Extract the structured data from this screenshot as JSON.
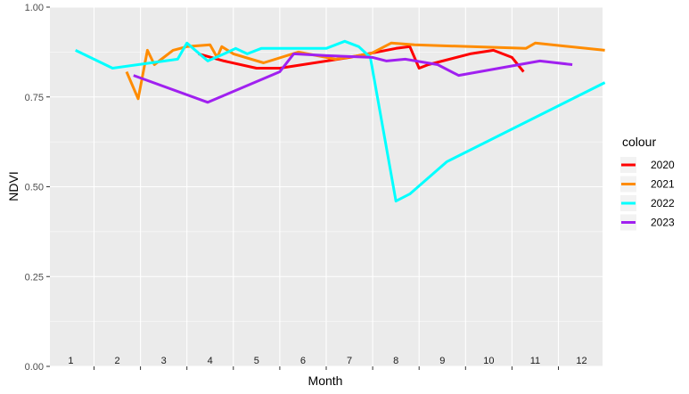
{
  "chart_data": {
    "type": "line",
    "xlabel": "Month",
    "ylabel": "NDVI",
    "xlim": [
      0.55,
      12.45
    ],
    "ylim": [
      0,
      1
    ],
    "y_ticks": [
      "0.00",
      "0.25",
      "0.50",
      "0.75",
      "1.00"
    ],
    "y_tick_values": [
      0,
      0.25,
      0.5,
      0.75,
      1
    ],
    "month_labels": [
      "1",
      "2",
      "3",
      "4",
      "5",
      "6",
      "7",
      "8",
      "9",
      "10",
      "11",
      "12"
    ],
    "legend_title": "colour",
    "legend_position": "right",
    "grid": true,
    "panel_background": "#ebebeb",
    "series": [
      {
        "name": "2020",
        "color": "#ff0000",
        "points": [
          [
            3.75,
            0.87
          ],
          [
            4.3,
            0.85
          ],
          [
            5.0,
            0.83
          ],
          [
            5.5,
            0.83
          ],
          [
            7.0,
            0.86
          ],
          [
            8.0,
            0.885
          ],
          [
            8.3,
            0.89
          ],
          [
            8.5,
            0.83
          ],
          [
            8.7,
            0.84
          ],
          [
            9.6,
            0.87
          ],
          [
            10.1,
            0.88
          ],
          [
            10.5,
            0.86
          ],
          [
            10.75,
            0.82
          ]
        ]
      },
      {
        "name": "2021",
        "color": "#ff8c00",
        "points": [
          [
            2.2,
            0.82
          ],
          [
            2.45,
            0.745
          ],
          [
            2.65,
            0.88
          ],
          [
            2.8,
            0.84
          ],
          [
            3.2,
            0.88
          ],
          [
            3.5,
            0.89
          ],
          [
            4.0,
            0.895
          ],
          [
            4.15,
            0.86
          ],
          [
            4.25,
            0.89
          ],
          [
            4.5,
            0.87
          ],
          [
            5.15,
            0.845
          ],
          [
            5.9,
            0.875
          ],
          [
            6.7,
            0.855
          ],
          [
            7.45,
            0.87
          ],
          [
            7.9,
            0.9
          ],
          [
            8.4,
            0.895
          ],
          [
            10.8,
            0.885
          ],
          [
            11.0,
            0.9
          ],
          [
            12.5,
            0.88
          ]
        ]
      },
      {
        "name": "2022",
        "color": "#00ffff",
        "points": [
          [
            1.1,
            0.88
          ],
          [
            1.9,
            0.83
          ],
          [
            3.3,
            0.855
          ],
          [
            3.5,
            0.9
          ],
          [
            3.95,
            0.85
          ],
          [
            4.3,
            0.87
          ],
          [
            4.55,
            0.885
          ],
          [
            4.8,
            0.87
          ],
          [
            5.1,
            0.885
          ],
          [
            5.4,
            0.885
          ],
          [
            6.5,
            0.885
          ],
          [
            6.9,
            0.905
          ],
          [
            7.2,
            0.89
          ],
          [
            7.45,
            0.86
          ],
          [
            8.0,
            0.46
          ],
          [
            8.3,
            0.48
          ],
          [
            9.1,
            0.57
          ],
          [
            12.5,
            0.79
          ]
        ]
      },
      {
        "name": "2023",
        "color": "#a020f0",
        "points": [
          [
            2.35,
            0.81
          ],
          [
            3.95,
            0.735
          ],
          [
            5.5,
            0.82
          ],
          [
            5.8,
            0.87
          ],
          [
            6.5,
            0.865
          ],
          [
            7.5,
            0.86
          ],
          [
            7.8,
            0.85
          ],
          [
            8.2,
            0.855
          ],
          [
            8.9,
            0.84
          ],
          [
            9.35,
            0.81
          ],
          [
            11.1,
            0.85
          ],
          [
            11.8,
            0.84
          ]
        ]
      }
    ]
  }
}
